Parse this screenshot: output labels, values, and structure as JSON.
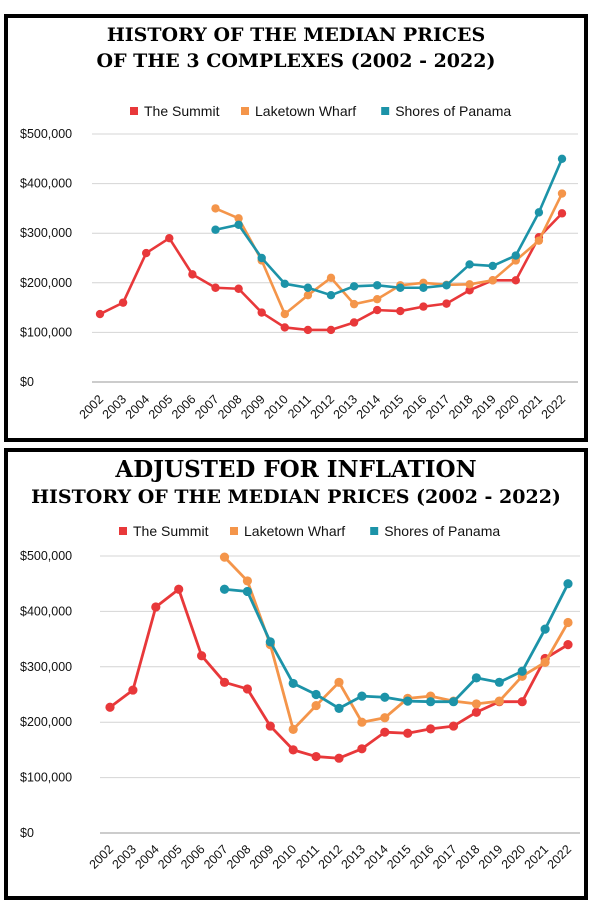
{
  "chart_data": [
    {
      "type": "line",
      "title": "HISTORY OF THE MEDIAN PRICES",
      "subtitle": "OF THE 3 COMPLEXES (2002 - 2022)",
      "x": [
        2002,
        2003,
        2004,
        2005,
        2006,
        2007,
        2008,
        2009,
        2010,
        2011,
        2012,
        2013,
        2014,
        2015,
        2016,
        2017,
        2018,
        2019,
        2020,
        2021,
        2022
      ],
      "ylim": [
        0,
        500000
      ],
      "yticks": [
        "$0",
        "$100,000",
        "$200,000",
        "$300,000",
        "$400,000",
        "$500,000"
      ],
      "legend_position": "top",
      "grid": true,
      "series": [
        {
          "name": "The Summit",
          "color": "#e8383a",
          "values": [
            137000,
            160000,
            260000,
            290000,
            217000,
            190000,
            188000,
            140000,
            110000,
            105000,
            105000,
            120000,
            145000,
            143000,
            152000,
            158000,
            185000,
            205000,
            205000,
            292000,
            340000
          ]
        },
        {
          "name": "Laketown Wharf",
          "color": "#f4954a",
          "values": [
            null,
            null,
            null,
            null,
            null,
            350000,
            330000,
            245000,
            137000,
            175000,
            210000,
            157000,
            167000,
            195000,
            200000,
            196000,
            197000,
            205000,
            245000,
            285000,
            380000
          ]
        },
        {
          "name": "Shores of Panama",
          "color": "#1c93a8",
          "values": [
            null,
            null,
            null,
            null,
            null,
            307000,
            317000,
            250000,
            198000,
            190000,
            175000,
            193000,
            195000,
            190000,
            190000,
            195000,
            237000,
            234000,
            255000,
            342000,
            450000
          ]
        }
      ]
    },
    {
      "type": "line",
      "title": "ADJUSTED FOR INFLATION",
      "subtitle": "HISTORY OF THE MEDIAN PRICES (2002 - 2022)",
      "x": [
        2002,
        2003,
        2004,
        2005,
        2006,
        2007,
        2008,
        2009,
        2010,
        2011,
        2012,
        2013,
        2014,
        2015,
        2016,
        2017,
        2018,
        2019,
        2020,
        2021,
        2022
      ],
      "ylim": [
        0,
        500000
      ],
      "yticks": [
        "$0",
        "$100,000",
        "$200,000",
        "$300,000",
        "$400,000",
        "$500,000"
      ],
      "legend_position": "top",
      "grid": true,
      "series": [
        {
          "name": "The Summit",
          "color": "#e8383a",
          "values": [
            227000,
            258000,
            408000,
            440000,
            320000,
            272000,
            260000,
            193000,
            150000,
            138000,
            135000,
            152000,
            182000,
            180000,
            188000,
            193000,
            218000,
            237000,
            237000,
            315000,
            340000
          ]
        },
        {
          "name": "Laketown Wharf",
          "color": "#f4954a",
          "values": [
            null,
            null,
            null,
            null,
            null,
            498000,
            455000,
            340000,
            187000,
            230000,
            272000,
            200000,
            208000,
            243000,
            247000,
            238000,
            233000,
            238000,
            283000,
            308000,
            380000
          ]
        },
        {
          "name": "Shores of Panama",
          "color": "#1c93a8",
          "values": [
            null,
            null,
            null,
            null,
            null,
            440000,
            436000,
            345000,
            270000,
            250000,
            225000,
            247000,
            245000,
            238000,
            237000,
            237000,
            280000,
            272000,
            292000,
            368000,
            450000
          ]
        }
      ]
    }
  ]
}
